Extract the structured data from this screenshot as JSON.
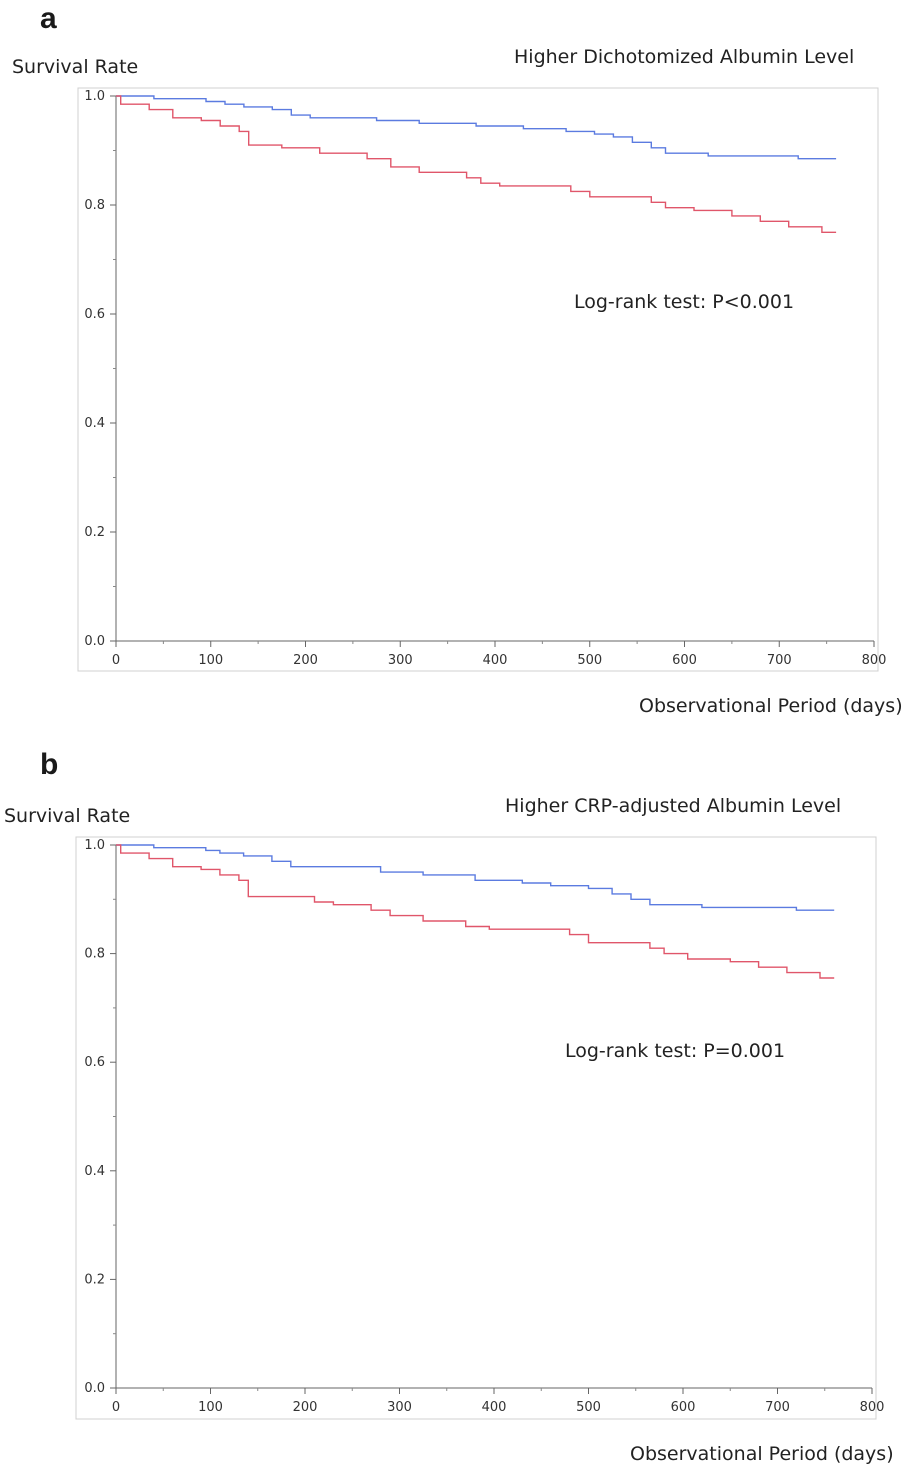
{
  "chart_data": [
    {
      "panel": "a",
      "type": "line",
      "title": "Higher Dichotomized Albumin Level",
      "ylabel": "Survival Rate",
      "xlabel": "Observational Period (days)",
      "annotation": "Log-rank test: P<0.001",
      "xlim": [
        0,
        800
      ],
      "ylim": [
        0.0,
        1.0
      ],
      "xticks": [
        "0",
        "100",
        "200",
        "300",
        "400",
        "500",
        "600",
        "700",
        "800"
      ],
      "yticks": [
        "0.0",
        "0.2",
        "0.4",
        "0.6",
        "0.8",
        "1.0"
      ],
      "step": true,
      "series": [
        {
          "color": "#5b7be0",
          "points": [
            [
              0,
              1.0
            ],
            [
              40,
              1.0
            ],
            [
              40,
              0.995
            ],
            [
              95,
              0.995
            ],
            [
              95,
              0.99
            ],
            [
              115,
              0.99
            ],
            [
              115,
              0.985
            ],
            [
              135,
              0.985
            ],
            [
              135,
              0.98
            ],
            [
              165,
              0.98
            ],
            [
              165,
              0.975
            ],
            [
              185,
              0.975
            ],
            [
              185,
              0.965
            ],
            [
              205,
              0.965
            ],
            [
              205,
              0.96
            ],
            [
              275,
              0.96
            ],
            [
              275,
              0.955
            ],
            [
              320,
              0.955
            ],
            [
              320,
              0.95
            ],
            [
              380,
              0.95
            ],
            [
              380,
              0.945
            ],
            [
              430,
              0.945
            ],
            [
              430,
              0.94
            ],
            [
              475,
              0.94
            ],
            [
              475,
              0.935
            ],
            [
              505,
              0.935
            ],
            [
              505,
              0.93
            ],
            [
              525,
              0.93
            ],
            [
              525,
              0.925
            ],
            [
              545,
              0.925
            ],
            [
              545,
              0.915
            ],
            [
              565,
              0.915
            ],
            [
              565,
              0.905
            ],
            [
              580,
              0.905
            ],
            [
              580,
              0.895
            ],
            [
              625,
              0.895
            ],
            [
              625,
              0.89
            ],
            [
              720,
              0.89
            ],
            [
              720,
              0.885
            ],
            [
              760,
              0.885
            ]
          ]
        },
        {
          "color": "#e0566a",
          "points": [
            [
              0,
              1.0
            ],
            [
              5,
              1.0
            ],
            [
              5,
              0.985
            ],
            [
              35,
              0.985
            ],
            [
              35,
              0.975
            ],
            [
              60,
              0.975
            ],
            [
              60,
              0.96
            ],
            [
              90,
              0.96
            ],
            [
              90,
              0.955
            ],
            [
              110,
              0.955
            ],
            [
              110,
              0.945
            ],
            [
              130,
              0.945
            ],
            [
              130,
              0.935
            ],
            [
              140,
              0.935
            ],
            [
              140,
              0.91
            ],
            [
              175,
              0.91
            ],
            [
              175,
              0.905
            ],
            [
              215,
              0.905
            ],
            [
              215,
              0.895
            ],
            [
              265,
              0.895
            ],
            [
              265,
              0.885
            ],
            [
              290,
              0.885
            ],
            [
              290,
              0.87
            ],
            [
              320,
              0.87
            ],
            [
              320,
              0.86
            ],
            [
              370,
              0.86
            ],
            [
              370,
              0.85
            ],
            [
              385,
              0.85
            ],
            [
              385,
              0.84
            ],
            [
              405,
              0.84
            ],
            [
              405,
              0.835
            ],
            [
              480,
              0.835
            ],
            [
              480,
              0.825
            ],
            [
              500,
              0.825
            ],
            [
              500,
              0.815
            ],
            [
              565,
              0.815
            ],
            [
              565,
              0.805
            ],
            [
              580,
              0.805
            ],
            [
              580,
              0.795
            ],
            [
              610,
              0.795
            ],
            [
              610,
              0.79
            ],
            [
              650,
              0.79
            ],
            [
              650,
              0.78
            ],
            [
              680,
              0.78
            ],
            [
              680,
              0.77
            ],
            [
              710,
              0.77
            ],
            [
              710,
              0.76
            ],
            [
              745,
              0.76
            ],
            [
              745,
              0.75
            ],
            [
              760,
              0.75
            ]
          ]
        }
      ]
    },
    {
      "panel": "b",
      "type": "line",
      "title": "Higher CRP-adjusted Albumin Level",
      "ylabel": "Survival Rate",
      "xlabel": "Observational Period (days)",
      "annotation": "Log-rank test: P=0.001",
      "xlim": [
        0,
        800
      ],
      "ylim": [
        0.0,
        1.0
      ],
      "xticks": [
        "0",
        "100",
        "200",
        "300",
        "400",
        "500",
        "600",
        "700",
        "800"
      ],
      "yticks": [
        "0.0",
        "0.2",
        "0.4",
        "0.6",
        "0.8",
        "1.0"
      ],
      "step": true,
      "series": [
        {
          "color": "#5b7be0",
          "points": [
            [
              0,
              1.0
            ],
            [
              40,
              1.0
            ],
            [
              40,
              0.995
            ],
            [
              95,
              0.995
            ],
            [
              95,
              0.99
            ],
            [
              110,
              0.99
            ],
            [
              110,
              0.985
            ],
            [
              135,
              0.985
            ],
            [
              135,
              0.98
            ],
            [
              165,
              0.98
            ],
            [
              165,
              0.97
            ],
            [
              185,
              0.97
            ],
            [
              185,
              0.96
            ],
            [
              280,
              0.96
            ],
            [
              280,
              0.95
            ],
            [
              325,
              0.95
            ],
            [
              325,
              0.945
            ],
            [
              380,
              0.945
            ],
            [
              380,
              0.935
            ],
            [
              430,
              0.935
            ],
            [
              430,
              0.93
            ],
            [
              460,
              0.93
            ],
            [
              460,
              0.925
            ],
            [
              500,
              0.925
            ],
            [
              500,
              0.92
            ],
            [
              525,
              0.92
            ],
            [
              525,
              0.91
            ],
            [
              545,
              0.91
            ],
            [
              545,
              0.9
            ],
            [
              565,
              0.9
            ],
            [
              565,
              0.89
            ],
            [
              620,
              0.89
            ],
            [
              620,
              0.885
            ],
            [
              720,
              0.885
            ],
            [
              720,
              0.88
            ],
            [
              760,
              0.88
            ]
          ]
        },
        {
          "color": "#e0566a",
          "points": [
            [
              0,
              1.0
            ],
            [
              5,
              1.0
            ],
            [
              5,
              0.985
            ],
            [
              35,
              0.985
            ],
            [
              35,
              0.975
            ],
            [
              60,
              0.975
            ],
            [
              60,
              0.96
            ],
            [
              90,
              0.96
            ],
            [
              90,
              0.955
            ],
            [
              110,
              0.955
            ],
            [
              110,
              0.945
            ],
            [
              130,
              0.945
            ],
            [
              130,
              0.935
            ],
            [
              140,
              0.935
            ],
            [
              140,
              0.905
            ],
            [
              210,
              0.905
            ],
            [
              210,
              0.895
            ],
            [
              230,
              0.895
            ],
            [
              230,
              0.89
            ],
            [
              270,
              0.89
            ],
            [
              270,
              0.88
            ],
            [
              290,
              0.88
            ],
            [
              290,
              0.87
            ],
            [
              325,
              0.87
            ],
            [
              325,
              0.86
            ],
            [
              370,
              0.86
            ],
            [
              370,
              0.85
            ],
            [
              395,
              0.85
            ],
            [
              395,
              0.845
            ],
            [
              480,
              0.845
            ],
            [
              480,
              0.835
            ],
            [
              500,
              0.835
            ],
            [
              500,
              0.82
            ],
            [
              565,
              0.82
            ],
            [
              565,
              0.81
            ],
            [
              580,
              0.81
            ],
            [
              580,
              0.8
            ],
            [
              605,
              0.8
            ],
            [
              605,
              0.79
            ],
            [
              650,
              0.79
            ],
            [
              650,
              0.785
            ],
            [
              680,
              0.785
            ],
            [
              680,
              0.775
            ],
            [
              710,
              0.775
            ],
            [
              710,
              0.765
            ],
            [
              745,
              0.765
            ],
            [
              745,
              0.755
            ],
            [
              760,
              0.755
            ]
          ]
        }
      ]
    }
  ]
}
